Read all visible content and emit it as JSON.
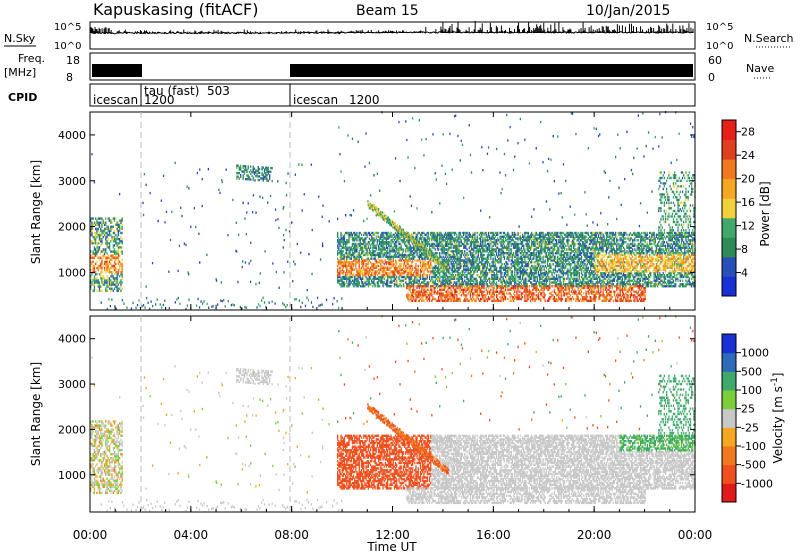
{
  "header": {
    "radar": "Kapuskasing (fitACF)",
    "beam": "Beam 15",
    "date": "10/Jan/2015"
  },
  "noise_panel": {
    "left_label": "N.Sky",
    "right_label": "N.Search",
    "tick_top": "10^5",
    "tick_bottom": "10^0"
  },
  "freq_panel": {
    "label_line1": "Freq.",
    "label_line2": "[MHz]",
    "left_ticks": [
      "18",
      "8"
    ],
    "right_ticks": [
      "60",
      "0"
    ],
    "right_label": "Nave"
  },
  "cpid_panel": {
    "label": "CPID",
    "modes": [
      {
        "name": "icescan",
        "start_hour": 0,
        "end_hour": 2,
        "cpid": ""
      },
      {
        "name": "tau (fast)",
        "start_hour": 2,
        "end_hour": 8,
        "cpid": "503"
      },
      {
        "name": "icescan",
        "start_hour": 8,
        "end_hour": 24,
        "cpid": "1200"
      }
    ],
    "first_cpid": "1200"
  },
  "colors": {
    "power": [
      "#1a2fd6",
      "#2a4fb8",
      "#2e8b57",
      "#3fa86a",
      "#f2d03a",
      "#f5a623",
      "#f0781e",
      "#e04020",
      "#e8201a"
    ],
    "velocity_neg": [
      "#e01a1a",
      "#f0501e",
      "#f0781e",
      "#f5a623"
    ],
    "velocity_mid": "#c8c8c8",
    "velocity_pos": [
      "#7ccd3a",
      "#3fa86a",
      "#2e6bb8",
      "#1a2fd6"
    ]
  },
  "chart_data": [
    {
      "type": "heatmap",
      "panel": "power",
      "ylabel": "Slant Range [km]",
      "yticks": [
        "1000",
        "2000",
        "3000",
        "4000"
      ],
      "ylim": [
        180,
        4500
      ],
      "xlim": [
        0,
        24
      ],
      "colorbar_label": "Power [dB]",
      "colorbar_ticks": [
        "4",
        "8",
        "12",
        "16",
        "20",
        "24",
        "28"
      ],
      "colorbar_range": [
        0,
        30
      ]
    },
    {
      "type": "heatmap",
      "panel": "velocity",
      "ylabel": "Slant Range [km]",
      "yticks": [
        "1000",
        "2000",
        "3000",
        "4000"
      ],
      "ylim": [
        180,
        4500
      ],
      "xlim": [
        0,
        24
      ],
      "xlabel": "Time UT",
      "xticks": [
        "00:00",
        "04:00",
        "08:00",
        "12:00",
        "16:00",
        "20:00",
        "00:00"
      ],
      "colorbar_label": "Velocity [m s^-1]",
      "colorbar_ticks": [
        "1000",
        "500",
        "100",
        "25",
        "-25",
        "-100",
        "-500",
        "-1000"
      ]
    }
  ]
}
